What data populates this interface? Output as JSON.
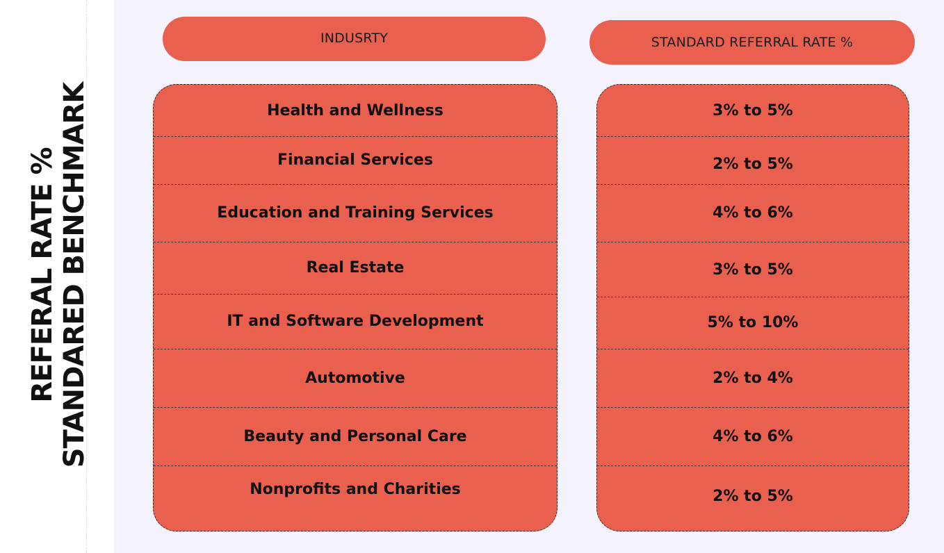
{
  "side_title": {
    "line1": "REFERAL RATE %",
    "line2": "STANDARED BENCHMARK"
  },
  "headers": {
    "industry": "INDUSRTY",
    "rate": "STANDARD REFERRAL RATE %"
  },
  "rows": [
    {
      "industry": "Health and Wellness",
      "rate": "3% to 5%"
    },
    {
      "industry": "Financial Services",
      "rate": "2% to 5%"
    },
    {
      "industry": "Education and Training Services",
      "rate": "4% to 6%"
    },
    {
      "industry": "Real Estate",
      "rate": "3% to 5%"
    },
    {
      "industry": "IT and Software Development",
      "rate": "5% to 10%"
    },
    {
      "industry": "Automotive",
      "rate": "2% to 4%"
    },
    {
      "industry": "Beauty and Personal Care",
      "rate": "4% to 6%"
    },
    {
      "industry": "Nonprofits and Charities",
      "rate": "2% to 5%"
    }
  ],
  "colors": {
    "accent": "#ea604f",
    "background": "#f4f2fd",
    "text": "#111111"
  }
}
